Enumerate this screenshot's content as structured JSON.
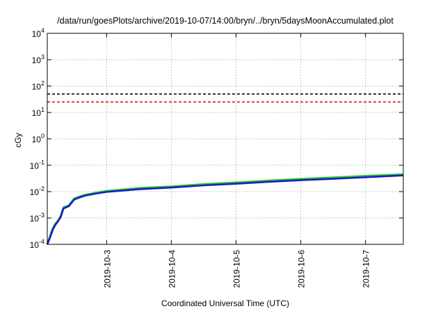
{
  "chart_data": {
    "type": "line",
    "title": "/data/run/goesPlots/archive/2019-10-07/14:00/bryn/../bryn/5daysMoonAccumulated.plot",
    "xlabel": "Coordinated Universal Time (UTC)",
    "ylabel": "cGy",
    "yscale": "log",
    "ylim": [
      0.0001,
      10000
    ],
    "xlim": [
      "2019-10-02T02:00",
      "2019-10-07T14:00"
    ],
    "grid": true,
    "y_ticks": [
      {
        "value": 0.0001,
        "base": "10",
        "exp": "-4"
      },
      {
        "value": 0.001,
        "base": "10",
        "exp": "-3"
      },
      {
        "value": 0.01,
        "base": "10",
        "exp": "-2"
      },
      {
        "value": 0.1,
        "base": "10",
        "exp": "-1"
      },
      {
        "value": 1,
        "base": "10",
        "exp": "0"
      },
      {
        "value": 10,
        "base": "10",
        "exp": "1"
      },
      {
        "value": 100,
        "base": "10",
        "exp": "2"
      },
      {
        "value": 1000,
        "base": "10",
        "exp": "3"
      },
      {
        "value": 10000,
        "base": "10",
        "exp": "4"
      }
    ],
    "x_ticks": [
      "2019-10-3",
      "2019-10-4",
      "2019-10-5",
      "2019-10-6",
      "2019-10-7"
    ],
    "thresholds": [
      {
        "value": 50,
        "color": "#000000",
        "style": "dashed"
      },
      {
        "value": 25,
        "color": "#ee0000",
        "style": "dashed"
      }
    ],
    "series": [
      {
        "color": "#22cc22",
        "x": [
          "2019-10-02T02:00",
          "2019-10-02T03:00",
          "2019-10-02T04:00",
          "2019-10-02T05:00",
          "2019-10-02T06:00",
          "2019-10-02T07:00",
          "2019-10-02T08:00",
          "2019-10-02T10:00",
          "2019-10-02T12:00",
          "2019-10-02T14:00",
          "2019-10-02T16:00",
          "2019-10-02T18:00",
          "2019-10-02T20:00",
          "2019-10-03T00:00",
          "2019-10-03T12:00",
          "2019-10-04T00:00",
          "2019-10-04T12:00",
          "2019-10-05T00:00",
          "2019-10-05T12:00",
          "2019-10-06T00:00",
          "2019-10-06T12:00",
          "2019-10-07T00:00",
          "2019-10-07T14:00"
        ],
        "values": [
          0.0001,
          0.0002,
          0.0004,
          0.0006,
          0.0008,
          0.0012,
          0.0025,
          0.003,
          0.0055,
          0.0065,
          0.0075,
          0.0082,
          0.009,
          0.0105,
          0.0135,
          0.0155,
          0.019,
          0.022,
          0.026,
          0.03,
          0.034,
          0.039,
          0.045
        ]
      },
      {
        "color": "#1a1acc",
        "x": [
          "2019-10-02T02:00",
          "2019-10-02T03:00",
          "2019-10-02T04:00",
          "2019-10-02T05:00",
          "2019-10-02T06:00",
          "2019-10-02T07:00",
          "2019-10-02T08:00",
          "2019-10-02T10:00",
          "2019-10-02T12:00",
          "2019-10-02T14:00",
          "2019-10-02T16:00",
          "2019-10-02T18:00",
          "2019-10-02T20:00",
          "2019-10-03T00:00",
          "2019-10-03T12:00",
          "2019-10-04T00:00",
          "2019-10-04T12:00",
          "2019-10-05T00:00",
          "2019-10-05T12:00",
          "2019-10-06T00:00",
          "2019-10-06T12:00",
          "2019-10-07T00:00",
          "2019-10-07T14:00"
        ],
        "values": [
          0.0001,
          0.00018,
          0.00035,
          0.00055,
          0.00075,
          0.0011,
          0.0023,
          0.0028,
          0.005,
          0.006,
          0.007,
          0.0077,
          0.0084,
          0.0097,
          0.0123,
          0.0142,
          0.0172,
          0.0198,
          0.0235,
          0.027,
          0.0305,
          0.035,
          0.041
        ]
      }
    ]
  }
}
